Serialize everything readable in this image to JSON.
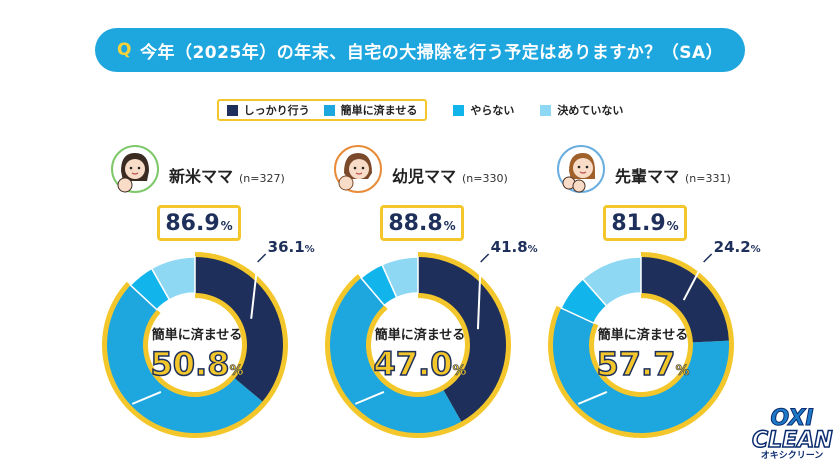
{
  "question": {
    "mark": "Q",
    "text": "今年（2025年）の年末、自宅の大掃除を行う予定はありますか？（SA）"
  },
  "legend": {
    "items": [
      {
        "label": "しっかり行う",
        "color": "#1d2f5a"
      },
      {
        "label": "簡単に済ませる",
        "color": "#1ea6de"
      },
      {
        "label": "やらない",
        "color": "#12b4ec"
      },
      {
        "label": "決めていない",
        "color": "#8fd8f4"
      }
    ]
  },
  "chart_data": [
    {
      "type": "pie",
      "group": "新米ママ",
      "n": "(n=327)",
      "total": "86.9",
      "total_unit": "%",
      "center_label": "簡単に済ませる",
      "series": [
        {
          "name": "しっかり行う",
          "value": 36.1,
          "label": "36.1"
        },
        {
          "name": "簡単に済ませる",
          "value": 50.8,
          "label": "50.8"
        },
        {
          "name": "やらない",
          "value": 4.9
        },
        {
          "name": "決めていない",
          "value": 8.2
        }
      ]
    },
    {
      "type": "pie",
      "group": "幼児ママ",
      "n": "(n=330)",
      "total": "88.8",
      "total_unit": "%",
      "center_label": "簡単に済ませる",
      "series": [
        {
          "name": "しっかり行う",
          "value": 41.8,
          "label": "41.8"
        },
        {
          "name": "簡単に済ませる",
          "value": 47.0,
          "label": "47.0"
        },
        {
          "name": "やらない",
          "value": 4.5
        },
        {
          "name": "決めていない",
          "value": 6.7
        }
      ]
    },
    {
      "type": "pie",
      "group": "先輩ママ",
      "n": "(n=331)",
      "total": "81.9",
      "total_unit": "%",
      "center_label": "簡単に済ませる",
      "series": [
        {
          "name": "しっかり行う",
          "value": 24.2,
          "label": "24.2"
        },
        {
          "name": "簡単に済ませる",
          "value": 57.7,
          "label": "57.7"
        },
        {
          "name": "やらない",
          "value": 6.6
        },
        {
          "name": "決めていない",
          "value": 11.5
        }
      ]
    }
  ],
  "pct_unit": "%",
  "logo": {
    "line1": "OXI",
    "line2": "CLEAN",
    "line3": "オキシクリーン"
  }
}
